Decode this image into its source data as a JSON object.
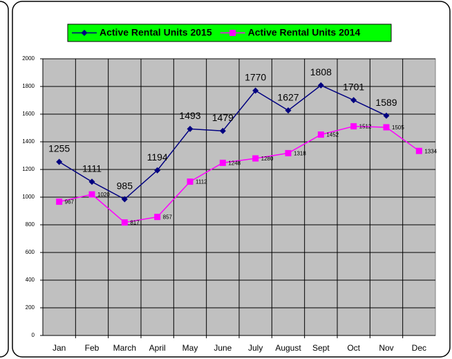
{
  "chart_data": {
    "type": "line",
    "categories": [
      "Jan",
      "Feb",
      "March",
      "April",
      "May",
      "June",
      "July",
      "August",
      "Sept",
      "Oct",
      "Nov",
      "Dec"
    ],
    "series": [
      {
        "name": "Active Rental Units 2015",
        "color": "#000080",
        "marker": "diamond",
        "values": [
          1255,
          1111,
          985,
          1194,
          1493,
          1479,
          1770,
          1627,
          1808,
          1701,
          1589,
          null
        ]
      },
      {
        "name": "Active Rental Units 2014",
        "color": "#ff00ff",
        "marker": "square",
        "values": [
          967,
          1020,
          817,
          857,
          1112,
          1248,
          1280,
          1318,
          1452,
          1512,
          1505,
          1334
        ]
      }
    ],
    "ylim": [
      0,
      2000
    ],
    "yticks": [
      0,
      200,
      400,
      600,
      800,
      1000,
      1200,
      1400,
      1600,
      1800,
      2000
    ],
    "grid": true,
    "legend": "top",
    "plot_background": "#c0c0c0",
    "legend_background": "#00ff00"
  }
}
